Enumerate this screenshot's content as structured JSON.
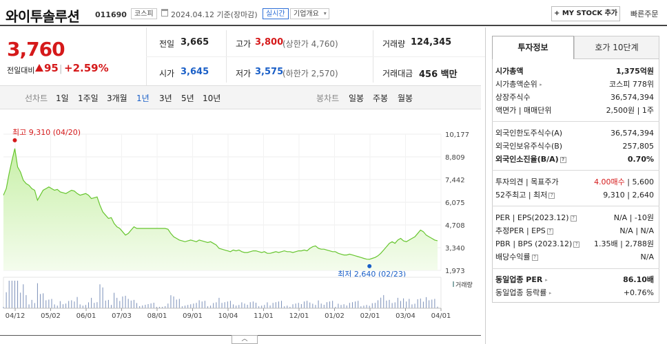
{
  "header": {
    "company": "와이투솔루션",
    "code": "011690",
    "market_tag": "코스피",
    "date_text": "2024.04.12 기준(장마감)",
    "realtime_tag": "실시간",
    "company_overview": "기업개요",
    "mystock_button": "+ MY STOCK 추가",
    "quick_order": "빠른주문"
  },
  "quote": {
    "price": "3,760",
    "compare_label": "전일대비",
    "change_amount": "95",
    "change_pct": "+2.59%",
    "prev_label": "전일",
    "prev_value": "3,665",
    "high_label": "고가",
    "high_value": "3,800",
    "upper_limit": "(상한가 4,760)",
    "volume_label": "거래량",
    "volume_value": "124,345",
    "open_label": "시가",
    "open_value": "3,645",
    "low_label": "저가",
    "low_value": "3,575",
    "lower_limit": "(하한가 2,570)",
    "amount_label": "거래대금",
    "amount_value": "456 백만"
  },
  "periods": {
    "line_label": "선차트",
    "line_items": [
      "1일",
      "1주일",
      "3개월",
      "1년",
      "3년",
      "5년",
      "10년"
    ],
    "active": "1년",
    "candle_label": "봉차트",
    "candle_items": [
      "일봉",
      "주봉",
      "월봉"
    ]
  },
  "chart_data": {
    "type": "area",
    "y_ticks": [
      "10,177",
      "8,809",
      "7,442",
      "6,075",
      "4,708",
      "3,340",
      "1,973"
    ],
    "ylim": [
      1973,
      10177
    ],
    "x_ticks": [
      "04/12",
      "05/02",
      "06/01",
      "07/03",
      "08/01",
      "09/01",
      "10/04",
      "11/01",
      "12/01",
      "01/02",
      "02/01",
      "03/04",
      "04/01"
    ],
    "high_label": "최고 9,310 (04/20)",
    "low_label": "최저 2,640 (02/23)",
    "volume_label": "거래량",
    "series": [
      {
        "values": [
          6500,
          6900,
          7800,
          8600,
          9310,
          8200,
          7900,
          7400,
          7200,
          7100,
          6900,
          6800,
          6200,
          6500,
          6800,
          6900,
          7000,
          6900,
          6800,
          6850,
          6700,
          6650,
          6600,
          6700,
          6800,
          6750,
          6600,
          6500,
          6550,
          6600,
          6500,
          6300,
          6350,
          6400,
          5900,
          5500,
          5300,
          5100,
          5150,
          4800,
          4600,
          4500,
          4300,
          4100,
          4200,
          4400,
          4600,
          4500,
          4500,
          4500,
          4500,
          4500,
          4500,
          4500,
          4500,
          4500,
          4500,
          4500,
          4450,
          4200,
          4000,
          3900,
          3800,
          3750,
          3700,
          3750,
          3800,
          3750,
          3700,
          3800,
          3750,
          3700,
          3650,
          3700,
          3600,
          3500,
          3300,
          3250,
          3200,
          3150,
          3100,
          3200,
          3150,
          3200,
          3100,
          3050,
          3050,
          3100,
          3150,
          3150,
          3100,
          3050,
          3100,
          3000,
          3000,
          3050,
          3100,
          3050,
          3100,
          3150,
          3100,
          3100,
          3050,
          3100,
          3150,
          3150,
          3200,
          3150,
          3300,
          3400,
          3450,
          3300,
          3250,
          3250,
          3200,
          3150,
          3100,
          3100,
          3000,
          2950,
          2900,
          2900,
          2950,
          2900,
          2850,
          2800,
          2750,
          2700,
          2650,
          2640,
          2700,
          2750,
          2850,
          3000,
          3200,
          3400,
          3600,
          3700,
          3600,
          3800,
          3900,
          3750,
          3700,
          3800,
          3900,
          4000,
          4200,
          4400,
          4300,
          4100,
          4000,
          3900,
          3800,
          3760
        ]
      }
    ]
  },
  "invest": {
    "tab_active": "투자정보",
    "tab_other": "호가 10단계",
    "rows1": [
      {
        "k": "시가총액",
        "v": "1,375억원"
      },
      {
        "k": "시가총액순위",
        "v": "코스피 778위"
      },
      {
        "k": "상장주식수",
        "v": "36,574,394"
      },
      {
        "k": "액면가 | 매매단위",
        "v": "2,500원 | 1주"
      }
    ],
    "rows2": [
      {
        "k": "외국인한도주식수(A)",
        "v": "36,574,394"
      },
      {
        "k": "외국인보유주식수(B)",
        "v": "257,805"
      },
      {
        "k": "외국인소진율(B/A)",
        "v": "0.70%"
      }
    ],
    "rows3": [
      {
        "k": "투자의견 | 목표주가",
        "v1": "4.00매수",
        "v2": "5,600"
      },
      {
        "k": "52주최고 | 최저",
        "v1": "9,310",
        "v2": "2,640"
      }
    ],
    "rows4": [
      {
        "k": "PER | EPS(2023.12)",
        "v1": "N/A",
        "v2": "-10원"
      },
      {
        "k": "추정PER | EPS",
        "v1": "N/A",
        "v2": "N/A"
      },
      {
        "k": "PBR | BPS (2023.12)",
        "v1": "1.35배",
        "v2": "2,788원"
      },
      {
        "k": "배당수익률",
        "v1": "",
        "v2": "N/A"
      }
    ],
    "rows5": [
      {
        "k": "동일업종 PER",
        "v": "86.10배"
      },
      {
        "k": "동일업종 등락률",
        "v": "+0.76%"
      }
    ]
  }
}
